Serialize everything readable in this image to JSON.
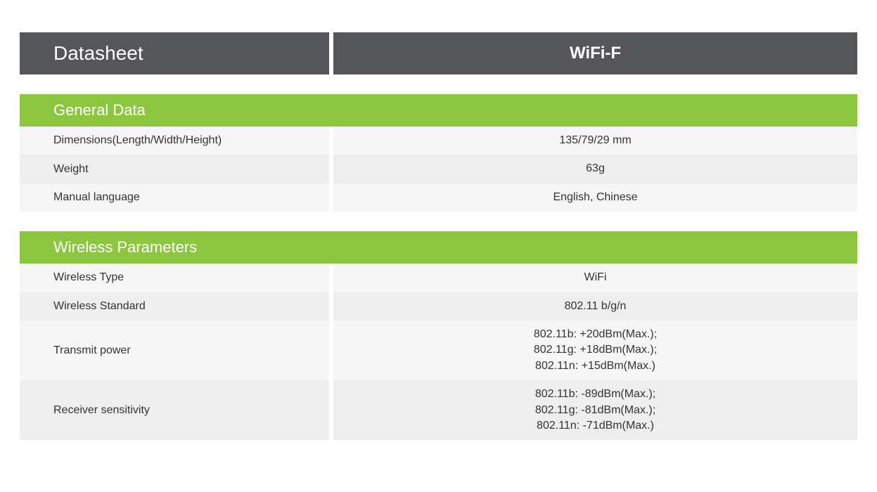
{
  "theme": {
    "header_bg": "#55565a",
    "section_bg": "#8cc63f",
    "row_odd_bg": "#f7f6f6",
    "row_even_bg": "#efeeee",
    "text_color": "#333333",
    "header_text_color": "#ffffff"
  },
  "header": {
    "left": "Datasheet",
    "right": "WiFi-F"
  },
  "sections": [
    {
      "title": "General Data",
      "rows": [
        {
          "label": "Dimensions(Length/Width/Height)",
          "value": "135/79/29 mm"
        },
        {
          "label": "Weight",
          "value": "63g"
        },
        {
          "label": "Manual language",
          "value": "English, Chinese"
        }
      ]
    },
    {
      "title": "Wireless Parameters",
      "rows": [
        {
          "label": "Wireless Type",
          "value": "WiFi"
        },
        {
          "label": "Wireless Standard",
          "value": "802.11 b/g/n"
        },
        {
          "label": "Transmit power",
          "value": "802.11b: +20dBm(Max.);\n802.11g: +18dBm(Max.);\n802.11n: +15dBm(Max.)"
        },
        {
          "label": "Receiver sensitivity",
          "value": "802.11b: -89dBm(Max.);\n802.11g: -81dBm(Max.);\n802.11n: -71dBm(Max.)"
        }
      ]
    }
  ]
}
